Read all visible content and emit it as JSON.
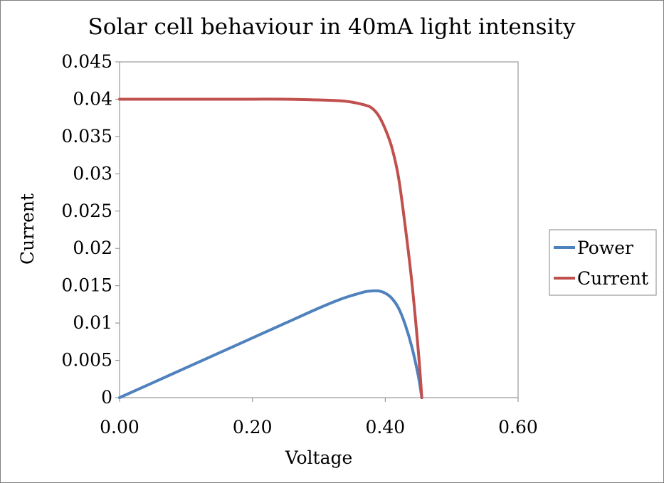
{
  "chart_data": {
    "type": "line",
    "title": "Solar cell behaviour in 40mA light intensity",
    "xlabel": "Voltage",
    "ylabel": "Current",
    "xlim": [
      0,
      0.6
    ],
    "ylim": [
      0,
      0.045
    ],
    "x_ticks": [
      "0.00",
      "0.20",
      "0.40",
      "0.60"
    ],
    "y_ticks": [
      "0",
      "0.005",
      "0.01",
      "0.015",
      "0.02",
      "0.025",
      "0.03",
      "0.035",
      "0.04",
      "0.045"
    ],
    "grid": false,
    "legend_position": "right",
    "series": [
      {
        "name": "Power",
        "color": "#4f81bd",
        "x": [
          0,
          0.05,
          0.1,
          0.15,
          0.2,
          0.25,
          0.3,
          0.33,
          0.35,
          0.37,
          0.38,
          0.39,
          0.4,
          0.41,
          0.42,
          0.43,
          0.44,
          0.45,
          0.455
        ],
        "y": [
          0,
          0.002,
          0.004,
          0.006,
          0.008,
          0.01,
          0.012,
          0.0131,
          0.0137,
          0.0142,
          0.0143,
          0.0143,
          0.014,
          0.0133,
          0.012,
          0.0098,
          0.0068,
          0.0028,
          0
        ]
      },
      {
        "name": "Current",
        "color": "#c0504d",
        "x": [
          0,
          0.05,
          0.1,
          0.15,
          0.2,
          0.25,
          0.3,
          0.33,
          0.35,
          0.37,
          0.38,
          0.39,
          0.4,
          0.41,
          0.42,
          0.43,
          0.44,
          0.45,
          0.455
        ],
        "y": [
          0.04,
          0.04,
          0.04,
          0.04,
          0.04,
          0.04,
          0.0399,
          0.0398,
          0.0396,
          0.0392,
          0.0388,
          0.0378,
          0.036,
          0.0335,
          0.0295,
          0.023,
          0.0155,
          0.006,
          0
        ]
      }
    ]
  }
}
